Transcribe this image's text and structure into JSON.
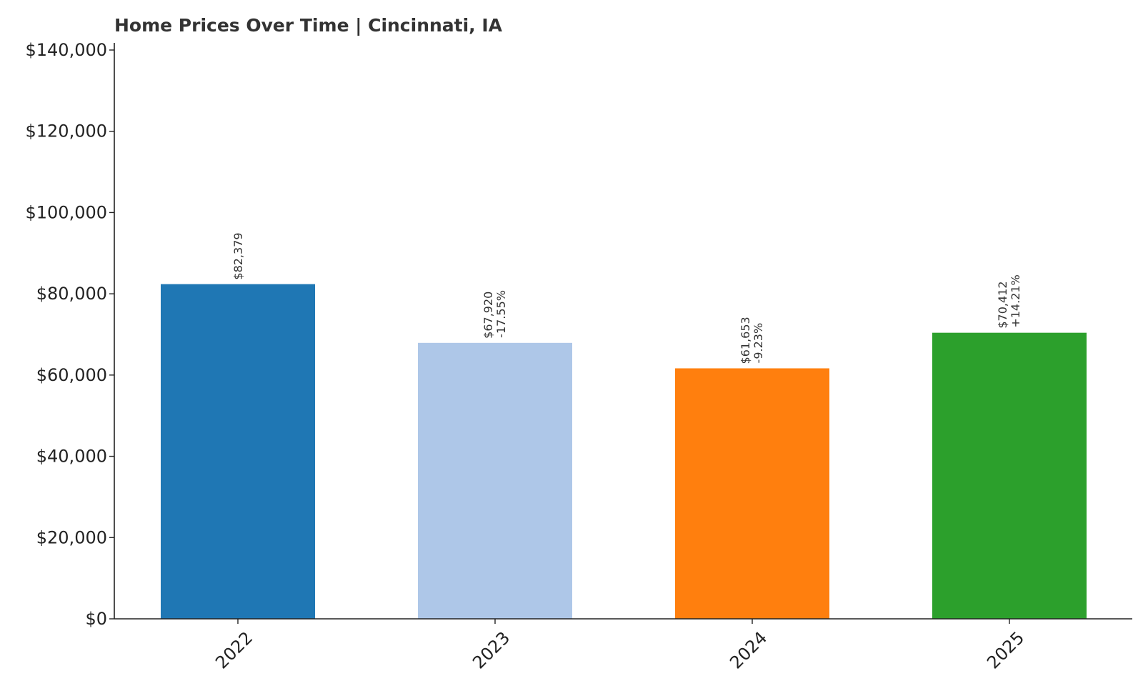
{
  "chart_data": {
    "type": "bar",
    "title": "Home Prices Over Time | Cincinnati, IA",
    "xlabel": "",
    "ylabel": "",
    "categories": [
      "2022",
      "2023",
      "2024",
      "2025"
    ],
    "values": [
      82379,
      67920,
      61653,
      70412
    ],
    "value_labels": [
      "$82,379",
      "$67,920",
      "$61,653",
      "$70,412"
    ],
    "change_labels": [
      "",
      "-17.55%",
      "-9.23%",
      "+14.21%"
    ],
    "colors": [
      "#1f77b4",
      "#aec7e8",
      "#ff7f0e",
      "#2ca02c"
    ],
    "ylim": [
      0,
      140000
    ],
    "yticks": [
      0,
      20000,
      40000,
      60000,
      80000,
      100000,
      120000,
      140000
    ],
    "ytick_labels": [
      "$0",
      "$20,000",
      "$40,000",
      "$60,000",
      "$80,000",
      "$100,000",
      "$120,000",
      "$140,000"
    ],
    "grid": false,
    "legend": "none"
  }
}
